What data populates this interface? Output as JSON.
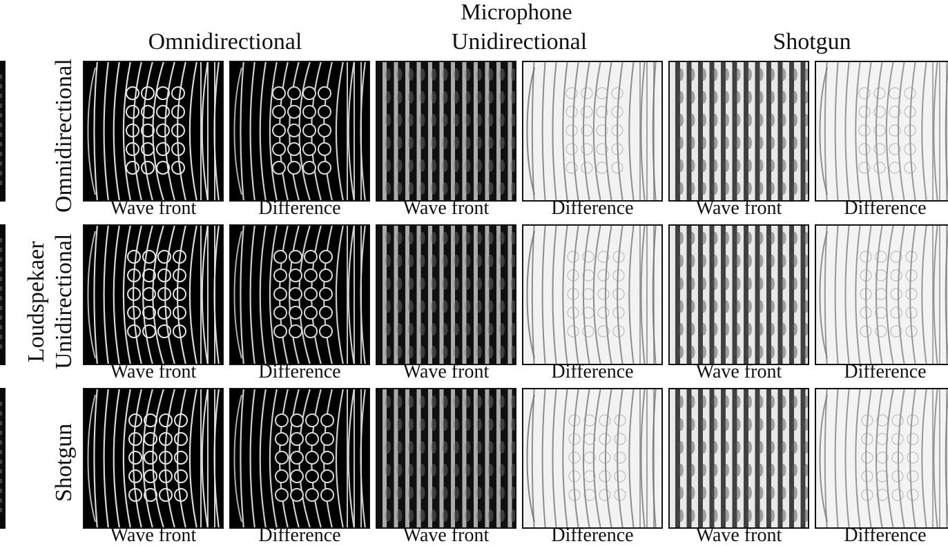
{
  "figure": {
    "mic_title": "Microphone",
    "columns": [
      "Omnidirectional",
      "Unidirectional",
      "Shotgun"
    ],
    "speaker_title": "Loudspekaer",
    "rows": [
      "Omnidirectional",
      "Unidirectional",
      "Shotgun"
    ],
    "panel_labels": [
      "Wave front",
      "Difference",
      "Wave front",
      "Difference",
      "Wave front",
      "Difference"
    ]
  }
}
